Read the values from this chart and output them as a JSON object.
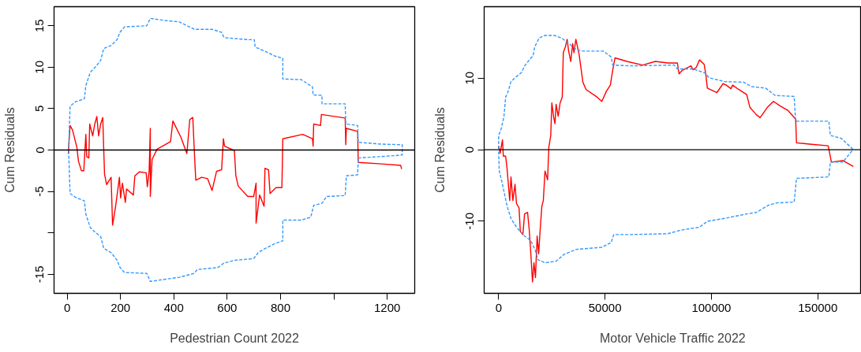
{
  "chart_data": [
    {
      "type": "line",
      "xlabel": "Pedestrian Count 2022",
      "ylabel": "Cum Residuals",
      "xlim": [
        -49,
        1303
      ],
      "ylim": [
        -17.3,
        17.3
      ],
      "xticks": [
        0,
        200,
        400,
        600,
        800,
        {
          "value": 1000,
          "label": null
        },
        1200
      ],
      "yticks": [
        -15,
        {
          "value": -10,
          "label": null
        },
        -5,
        0,
        5,
        10,
        15
      ],
      "ref_lines": [
        {
          "axis": "y",
          "value": 0,
          "color": "#000000"
        }
      ],
      "series": [
        {
          "color": "#ff0000",
          "line_style": "solid",
          "x": [
            4.5,
            6.7,
            11.1,
            20.0,
            36.7,
            42.3,
            53.5,
            62.4,
            70.2,
            73.5,
            81.3,
            84.6,
            95.8,
            103.6,
            111.4,
            118.0,
            125.8,
            133.6,
            137.0,
            140.3,
            148.1,
            164.8,
            170.4,
            181.5,
            196.0,
            200.4,
            207.1,
            218.3,
            222.7,
            248.3,
            253.9,
            270.6,
            296.2,
            300.7,
            307.4,
            311.8,
            311.8,
            318.5,
            337.4,
            387.5,
            396.4,
            426.5,
            448.8,
            459.9,
            471.1,
            476.6,
            482.2,
            504.5,
            526.7,
            543.4,
            560.1,
            579.1,
            585.8,
            590.2,
            627.0,
            632.5,
            641.4,
            677.1,
            699.3,
            708.3,
            708.3,
            721.6,
            738.3,
            741.7,
            755.0,
            760.6,
            782.9,
            805.1,
            808.5,
            883.1,
            919.8,
            922.1,
            924.3,
            949.9,
            953.2,
            1042.3,
            1044.6,
            1046.8,
            1089.1,
            1091.3,
            1178.2,
            1250.6,
            1253.9
          ],
          "values": [
            -0.43,
            0.82,
            2.96,
            2.43,
            0.29,
            -1.32,
            -2.5,
            -2.5,
            1.89,
            -0.79,
            -0.96,
            3.14,
            1.71,
            3.14,
            4.04,
            1.71,
            3.14,
            3.93,
            0.29,
            -2.93,
            -4.18,
            -3.29,
            -9.07,
            -6.86,
            -3.29,
            -5.79,
            -4.0,
            -6.32,
            -4.71,
            -5.43,
            -3.11,
            -2.64,
            -2.75,
            -4.43,
            -2.57,
            2.61,
            -5.61,
            -1.14,
            0.11,
            1.0,
            3.5,
            1.54,
            -0.43,
            3.68,
            3.93,
            0.0,
            -3.64,
            -3.29,
            -3.46,
            -4.89,
            -2.57,
            -2.39,
            1.36,
            0.46,
            -0.07,
            -3.11,
            -4.36,
            -5.61,
            -5.61,
            -4.0,
            -8.82,
            -5.43,
            -6.79,
            -2.21,
            -2.39,
            -5.25,
            -4.54,
            -4.54,
            1.36,
            1.89,
            1.36,
            0.46,
            3.14,
            2.96,
            4.29,
            3.86,
            0.64,
            2.61,
            2.25,
            -1.5,
            -1.68,
            -1.86,
            -2.29
          ]
        },
        {
          "color": "#3399ff",
          "line_style": "dashed",
          "x": [
            5.6,
            8.9,
            11.1,
            31.2,
            64.6,
            70.2,
            86.9,
            103.6,
            125.8,
            137.0,
            164.8,
            187.1,
            198.2,
            214.9,
            298.4,
            311.8,
            365.3,
            420.9,
            476.6,
            543.4,
            579.1,
            588.0,
            677.1,
            701.6,
            704.9,
            743.9,
            777.3,
            808.5,
            808.5,
            877.5,
            919.8,
            922.1,
            955.4,
            955.4,
            1042.3,
            1044.6,
            1089.1,
            1091.3,
            1178.2,
            1256.1,
            1256.1,
            1256.1,
            1178.2,
            1091.3,
            1089.1,
            1046.8,
            1042.3,
            972.2,
            955.4,
            924.3,
            913.2,
            877.5,
            808.5,
            808.5,
            777.3,
            743.9,
            716.0,
            699.3,
            632.5,
            588.0,
            565.7,
            487.8,
            476.6,
            420.9,
            365.3,
            311.8,
            298.4,
            214.9,
            198.2,
            187.1,
            164.8,
            137.0,
            125.8,
            103.6,
            86.9,
            70.2,
            64.6,
            31.2,
            11.1,
            8.9,
            5.6
          ],
          "values": [
            -0.25,
            3.14,
            5.29,
            5.82,
            6.18,
            7.79,
            9.39,
            9.93,
            10.82,
            12.25,
            12.61,
            13.32,
            14.21,
            14.86,
            15.0,
            15.89,
            15.64,
            15.46,
            14.57,
            14.57,
            14.21,
            13.57,
            13.32,
            13.32,
            12.43,
            11.89,
            11.36,
            11.07,
            8.57,
            8.5,
            7.61,
            6.64,
            6.61,
            5.57,
            5.57,
            3.14,
            2.96,
            0.93,
            0.71,
            0.64,
            -0.07,
            -0.61,
            -0.79,
            -0.96,
            -3.0,
            -3.11,
            -5.5,
            -5.61,
            -6.43,
            -6.68,
            -8.11,
            -8.46,
            -8.46,
            -10.96,
            -11.32,
            -11.86,
            -12.39,
            -13.11,
            -13.29,
            -13.64,
            -14.18,
            -14.43,
            -14.89,
            -15.36,
            -15.61,
            -15.86,
            -14.89,
            -14.79,
            -14.18,
            -13.29,
            -12.39,
            -11.86,
            -10.43,
            -9.89,
            -9.36,
            -7.75,
            -6.14,
            -5.71,
            -5.25,
            -3.29,
            0.11
          ]
        }
      ]
    },
    {
      "type": "line",
      "xlabel": "Motor Vehicle Traffic 2022",
      "ylabel": "Cum Residuals",
      "xlim": [
        -6800,
        170500
      ],
      "ylim": [
        -20.1,
        20
      ],
      "xticks": [
        0,
        50000,
        100000,
        150000
      ],
      "yticks": [
        -10,
        0,
        10
      ],
      "ref_lines": [
        {
          "axis": "y",
          "value": 0,
          "color": "#000000"
        }
      ],
      "series": [
        {
          "color": "#ff0000",
          "line_style": "solid",
          "x": [
            0,
            700,
            1800,
            2200,
            3300,
            4000,
            5200,
            5800,
            6700,
            7700,
            8400,
            9600,
            10200,
            11400,
            12200,
            13600,
            14400,
            15100,
            15900,
            16600,
            17300,
            18100,
            18800,
            19600,
            20300,
            21000,
            21800,
            23000,
            23600,
            24500,
            25000,
            25900,
            26500,
            27000,
            28000,
            28900,
            29900,
            30400,
            31400,
            32200,
            32900,
            33900,
            34800,
            35400,
            36300,
            37800,
            39600,
            41100,
            46200,
            48500,
            50700,
            52500,
            53600,
            54700,
            60300,
            67700,
            73700,
            79600,
            84000,
            84800,
            86300,
            90400,
            91400,
            92900,
            94400,
            96600,
            97400,
            98100,
            102600,
            105500,
            107000,
            109200,
            110000,
            112900,
            116600,
            118100,
            121100,
            122900,
            126300,
            129200,
            132200,
            135900,
            139600,
            140000,
            147000,
            154900,
            156400,
            161800,
            166700
          ],
          "values": [
            0.54,
            -0.5,
            1.37,
            -0.91,
            -0.91,
            -2.77,
            -7.12,
            -3.81,
            -7.12,
            -4.84,
            -7.54,
            -8.16,
            -11.47,
            -11.88,
            -8.99,
            -8.78,
            -11.26,
            -14.37,
            -18.51,
            -15.82,
            -17.89,
            -12.09,
            -14.58,
            -10.85,
            -7.95,
            -7.12,
            -2.98,
            -4.22,
            0.33,
            1.99,
            6.54,
            4.47,
            3.64,
            6.34,
            4.68,
            6.54,
            7.37,
            13.58,
            14.41,
            15.44,
            13.79,
            12.34,
            14.82,
            13.58,
            15.44,
            13.37,
            9.44,
            8.41,
            7.37,
            6.75,
            8.2,
            9.03,
            11.1,
            12.84,
            12.34,
            11.84,
            12.34,
            12.13,
            12.13,
            10.6,
            11.1,
            11.72,
            11.18,
            11.51,
            12.55,
            11.93,
            10.48,
            8.61,
            7.99,
            9.23,
            9.03,
            8.53,
            9.03,
            8.41,
            7.7,
            5.92,
            4.89,
            4.47,
            5.92,
            6.75,
            6.13,
            5.51,
            4.27,
            0.95,
            0.75,
            0.54,
            -1.74,
            -1.53,
            -2.36
          ]
        },
        {
          "color": "#3399ff",
          "line_style": "dashed",
          "x": [
            0,
            0,
            1300,
            2500,
            3300,
            4300,
            5800,
            7700,
            10700,
            12200,
            14400,
            16200,
            17000,
            19100,
            21800,
            26200,
            29900,
            36600,
            39600,
            49200,
            52900,
            53600,
            61800,
            82500,
            84000,
            91400,
            97400,
            98800,
            106300,
            115200,
            118900,
            125500,
            130000,
            138900,
            139600,
            155200,
            155900,
            161100,
            166300,
            166300,
            161800,
            155900,
            155200,
            140000,
            138900,
            130700,
            127000,
            121100,
            116600,
            106300,
            98100,
            94400,
            85500,
            79600,
            61800,
            54100,
            52900,
            48500,
            36600,
            30700,
            27000,
            21800,
            18500,
            17300,
            15100,
            12200,
            8400,
            5800,
            4000,
            1800,
            300,
            0
          ],
          "values": [
            0.12,
            1.99,
            3.02,
            4.68,
            7.37,
            7.99,
            9.52,
            10.06,
            10.77,
            11.72,
            12.55,
            13.17,
            14.41,
            15.65,
            15.98,
            15.98,
            15.57,
            14.0,
            13.79,
            13.79,
            12.96,
            11.84,
            11.72,
            11.84,
            11.3,
            11.3,
            10.68,
            10.06,
            9.52,
            9.44,
            8.82,
            8.61,
            7.58,
            7.45,
            3.98,
            3.98,
            1.99,
            1.57,
            0.12,
            -0.08,
            -1.74,
            -1.74,
            -3.81,
            -4.02,
            -7.33,
            -7.45,
            -7.74,
            -8.78,
            -8.99,
            -9.61,
            -10.02,
            -10.85,
            -11.26,
            -11.76,
            -11.88,
            -11.88,
            -13.0,
            -13.66,
            -13.95,
            -14.66,
            -15.61,
            -15.82,
            -15.4,
            -14.16,
            -12.71,
            -12.09,
            -10.85,
            -9.61,
            -7.95,
            -4.84,
            -2.98,
            -0.29
          ]
        }
      ]
    }
  ]
}
